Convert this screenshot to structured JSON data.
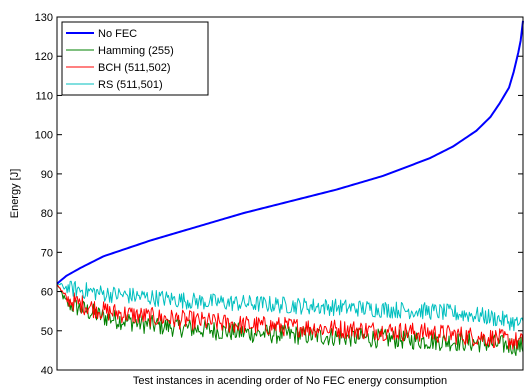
{
  "chart_data": {
    "type": "line",
    "title": "",
    "xlabel": "Test instances in acending order of No FEC energy consumption",
    "ylabel": "Energy [J]",
    "ylim": [
      40,
      130
    ],
    "yticks": [
      40,
      50,
      60,
      70,
      80,
      90,
      100,
      110,
      120,
      130
    ],
    "xticks": [],
    "grid": false,
    "legend_position": "top-left",
    "x_range": [
      0,
      1
    ],
    "series": [
      {
        "name": "No FEC",
        "color": "#0000ff",
        "style": "smooth",
        "x": [
          0.0,
          0.02,
          0.05,
          0.1,
          0.2,
          0.3,
          0.4,
          0.5,
          0.6,
          0.7,
          0.8,
          0.85,
          0.9,
          0.93,
          0.95,
          0.97,
          0.98,
          0.99,
          0.995,
          1.0
        ],
        "values": [
          62,
          64,
          66,
          69,
          73,
          76.5,
          80,
          83,
          86,
          89.5,
          94,
          97,
          101,
          104.5,
          108,
          112,
          116,
          121,
          124,
          129
        ]
      },
      {
        "name": "Hamming (255)",
        "color": "#008000",
        "style": "noisy",
        "x": [
          0.0,
          0.02,
          0.1,
          0.2,
          0.3,
          0.4,
          0.5,
          0.6,
          0.7,
          0.8,
          0.9,
          0.95,
          1.0
        ],
        "values": [
          62,
          57,
          53.5,
          51.5,
          50.5,
          49.5,
          49,
          48.5,
          48,
          47.5,
          47,
          46.5,
          46
        ],
        "noise_amplitude": 2.5
      },
      {
        "name": "BCH (511,502)",
        "color": "#ff0000",
        "style": "noisy",
        "x": [
          0.0,
          0.02,
          0.1,
          0.2,
          0.3,
          0.4,
          0.5,
          0.6,
          0.7,
          0.8,
          0.9,
          0.95,
          1.0
        ],
        "values": [
          62,
          58,
          55,
          53.5,
          52.5,
          51.5,
          51,
          50.5,
          50,
          49.5,
          48.5,
          48,
          47
        ],
        "noise_amplitude": 2.5
      },
      {
        "name": "RS (511,501)",
        "color": "#00bfbf",
        "style": "noisy",
        "x": [
          0.0,
          0.02,
          0.1,
          0.2,
          0.3,
          0.4,
          0.5,
          0.6,
          0.7,
          0.8,
          0.9,
          0.95,
          1.0
        ],
        "values": [
          62,
          61,
          59.5,
          58.5,
          57.5,
          57,
          56.5,
          56,
          55.5,
          55,
          54,
          53,
          51.5
        ],
        "noise_amplitude": 2.2
      }
    ]
  }
}
